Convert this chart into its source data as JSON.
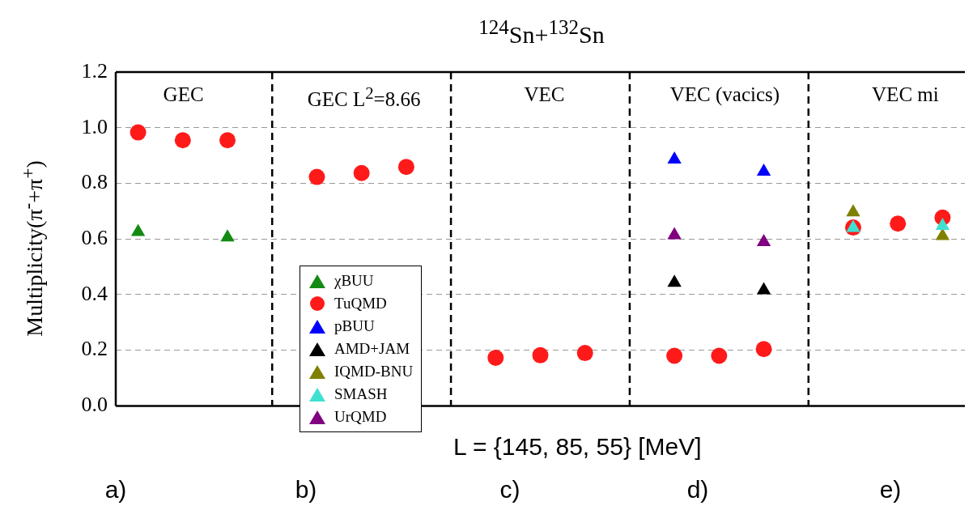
{
  "chart_data": {
    "type": "scatter",
    "title": "$^{124}$Sn+$^{132}$Sn",
    "xlabel": "L = {145, 85, 55} [MeV]",
    "ylabel": "Multiplicity(π$^{-}$+π$^{+}$)",
    "categories": [
      null,
      null,
      null,
      null,
      null,
      null,
      null,
      null,
      null,
      null,
      null,
      null,
      null,
      null,
      null,
      null,
      null,
      null,
      null
    ],
    "ylim": [
      0,
      1.2
    ],
    "yticks": [
      {
        "value": 0,
        "label": "0.0"
      },
      0.2,
      0.4,
      0.6,
      0.8,
      {
        "value": 1,
        "label": "1.0"
      },
      1.2
    ],
    "grid": true,
    "tick_labels": "y",
    "legend": "bottom left",
    "annotations": [
      "GEC",
      "GEC L$^{2}$=8.66",
      "VEC",
      "VEC (vacics)",
      "VEC mi",
      "a)",
      "b)",
      "c)",
      "d)",
      "e)"
    ],
    "series": [
      {
        "name": "χBUU",
        "color": "#138a13",
        "marker": "triangle",
        "values": [
          0.625,
          null,
          0.606,
          null,
          null,
          null,
          null,
          null,
          null,
          null,
          null,
          null,
          null,
          null,
          null,
          null,
          null,
          null,
          null
        ]
      },
      {
        "name": "TuQMD",
        "color": "#ff1a1a",
        "marker": "circle",
        "values": [
          0.983,
          0.955,
          0.955,
          null,
          0.823,
          0.837,
          0.859,
          null,
          0.173,
          0.182,
          0.19,
          null,
          0.18,
          0.18,
          0.204,
          null,
          0.641,
          0.655,
          0.677
        ]
      },
      {
        "name": "pBUU",
        "color": "#0000ff",
        "marker": "triangle",
        "values": [
          null,
          null,
          null,
          null,
          null,
          null,
          null,
          null,
          null,
          null,
          null,
          null,
          0.886,
          null,
          0.842,
          null,
          null,
          null,
          null
        ]
      },
      {
        "name": "AMD+JAM",
        "color": "#000000",
        "marker": "triangle",
        "values": [
          null,
          null,
          null,
          null,
          null,
          null,
          null,
          null,
          null,
          null,
          null,
          null,
          0.443,
          null,
          0.416,
          null,
          null,
          null,
          null
        ]
      },
      {
        "name": "IQMD-BNU",
        "color": "#808000",
        "marker": "triangle",
        "values": [
          null,
          null,
          null,
          null,
          null,
          null,
          null,
          null,
          null,
          null,
          null,
          null,
          null,
          null,
          null,
          null,
          0.696,
          null,
          0.611
        ]
      },
      {
        "name": "SMASH",
        "color": "#40e0d0",
        "marker": "triangle",
        "values": [
          null,
          null,
          null,
          null,
          null,
          null,
          null,
          null,
          null,
          null,
          null,
          null,
          null,
          null,
          null,
          null,
          0.64,
          null,
          0.647
        ]
      },
      {
        "name": "UrQMD",
        "color": "#800080",
        "marker": "triangle",
        "values": [
          null,
          null,
          null,
          null,
          null,
          null,
          null,
          null,
          null,
          null,
          null,
          null,
          0.614,
          null,
          0.589,
          null,
          null,
          null,
          null
        ]
      }
    ]
  }
}
